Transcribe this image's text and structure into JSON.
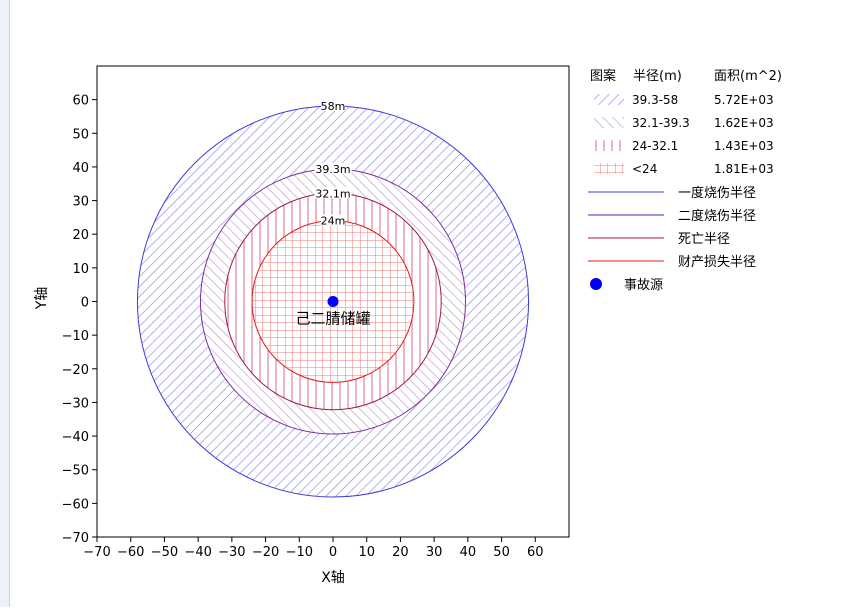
{
  "chart_data": {
    "type": "consequence-radius-circles",
    "xlabel": "X轴",
    "ylabel": "Y轴",
    "xlim": [
      -70,
      70
    ],
    "ylim": [
      -70,
      70
    ],
    "xticks": [
      -70,
      -60,
      -50,
      -40,
      -30,
      -20,
      -10,
      0,
      10,
      20,
      30,
      40,
      50,
      60
    ],
    "yticks": [
      -70,
      -60,
      -50,
      -40,
      -30,
      -20,
      -10,
      0,
      10,
      20,
      30,
      40,
      50,
      60
    ],
    "xtick_labels": [
      "−70",
      "−60",
      "−50",
      "−40",
      "−30",
      "−20",
      "−10",
      "0",
      "10",
      "20",
      "30",
      "40",
      "50",
      "60"
    ],
    "ytick_labels": [
      "−70",
      "−60",
      "−50",
      "−40",
      "−30",
      "−20",
      "−10",
      "0",
      "10",
      "20",
      "30",
      "40",
      "50",
      "60"
    ],
    "source": {
      "x": 0,
      "y": 0,
      "label": "己二腈储罐",
      "color": "#0000ff"
    },
    "circles": [
      {
        "radius": 58,
        "label": "58m",
        "color": "#3b3bdb"
      },
      {
        "radius": 39.3,
        "label": "39.3m",
        "color": "#7a2ca0"
      },
      {
        "radius": 32.1,
        "label": "32.1m",
        "color": "#9b1b4e"
      },
      {
        "radius": 24,
        "label": "24m",
        "color": "#e31b1b"
      }
    ],
    "zones": [
      {
        "range": "39.3-58",
        "area": "5.72E+03",
        "pattern": "diag-right",
        "color": "#7f7fe6",
        "inner": 39.3,
        "outer": 58
      },
      {
        "range": "32.1-39.3",
        "area": "1.62E+03",
        "pattern": "diag-left",
        "color": "#b591cc",
        "inner": 32.1,
        "outer": 39.3
      },
      {
        "range": "24-32.1",
        "area": "1.43E+03",
        "pattern": "vertical",
        "color": "#de6a8a",
        "inner": 24,
        "outer": 32.1
      },
      {
        "range": "<24",
        "area": "1.81E+03",
        "pattern": "grid",
        "color": "#f26a6a",
        "inner": 0,
        "outer": 24
      }
    ],
    "legend": {
      "header": {
        "pattern": "图案",
        "radius": "半径(m)",
        "area": "面积(m^2)"
      },
      "lines": [
        {
          "label": "一度烧伤半径",
          "color": "#3b3bdb"
        },
        {
          "label": "二度烧伤半径",
          "color": "#5a1fa8"
        },
        {
          "label": "死亡半径",
          "color": "#9b1b4e"
        },
        {
          "label": "财产损失半径",
          "color": "#e31b1b"
        }
      ],
      "source_entry": {
        "label": "事故源",
        "color": "#0000ff"
      },
      "placement": "right"
    },
    "grid": false
  }
}
